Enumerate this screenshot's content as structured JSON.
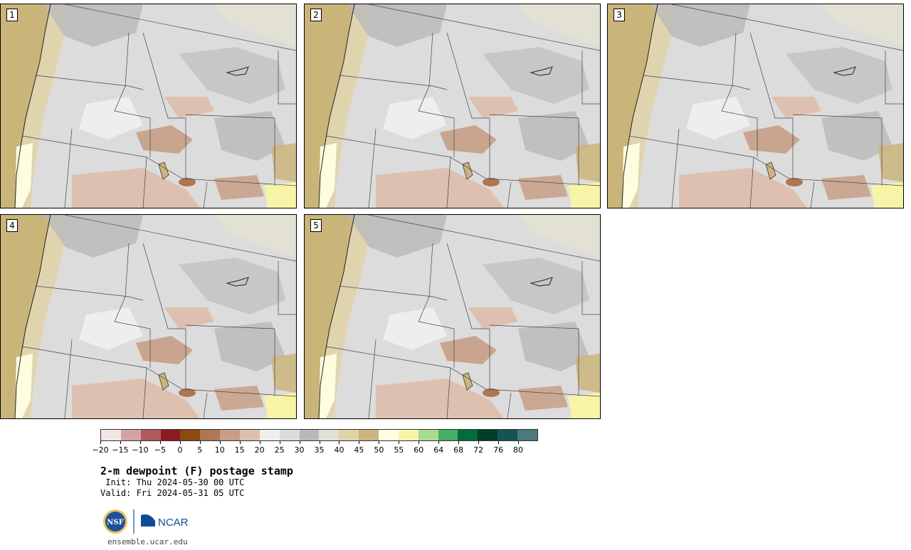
{
  "stamps": [
    {
      "label": "1"
    },
    {
      "label": "2"
    },
    {
      "label": "3"
    },
    {
      "label": "4"
    },
    {
      "label": "5"
    }
  ],
  "colorbar": {
    "colors": [
      "#f3e6e6",
      "#d4a3a5",
      "#b15a5d",
      "#8c1a23",
      "#8a4a12",
      "#ae7752",
      "#c79f86",
      "#ddc0b0",
      "#efefef",
      "#dcdcdc",
      "#b9b9b9",
      "#e2e1d4",
      "#e0d3a8",
      "#cbb57c",
      "#fefde0",
      "#f7f4a8",
      "#a8db8f",
      "#49ad67",
      "#006b3d",
      "#003d26",
      "#165357",
      "#4b7a7a"
    ],
    "ticks": [
      "−20",
      "−15",
      "−10",
      "−5",
      "0",
      "5",
      "10",
      "15",
      "20",
      "25",
      "30",
      "35",
      "40",
      "45",
      "50",
      "55",
      "60",
      "64",
      "68",
      "72",
      "76",
      "80"
    ]
  },
  "title": "2-m dewpoint (F) postage stamp",
  "init": " Init: Thu 2024-05-30 00 UTC",
  "valid": "Valid: Fri 2024-05-31 05 UTC",
  "logos": {
    "nsf": "NSF",
    "ncar": "NCAR"
  },
  "site": "ensemble.ucar.edu"
}
